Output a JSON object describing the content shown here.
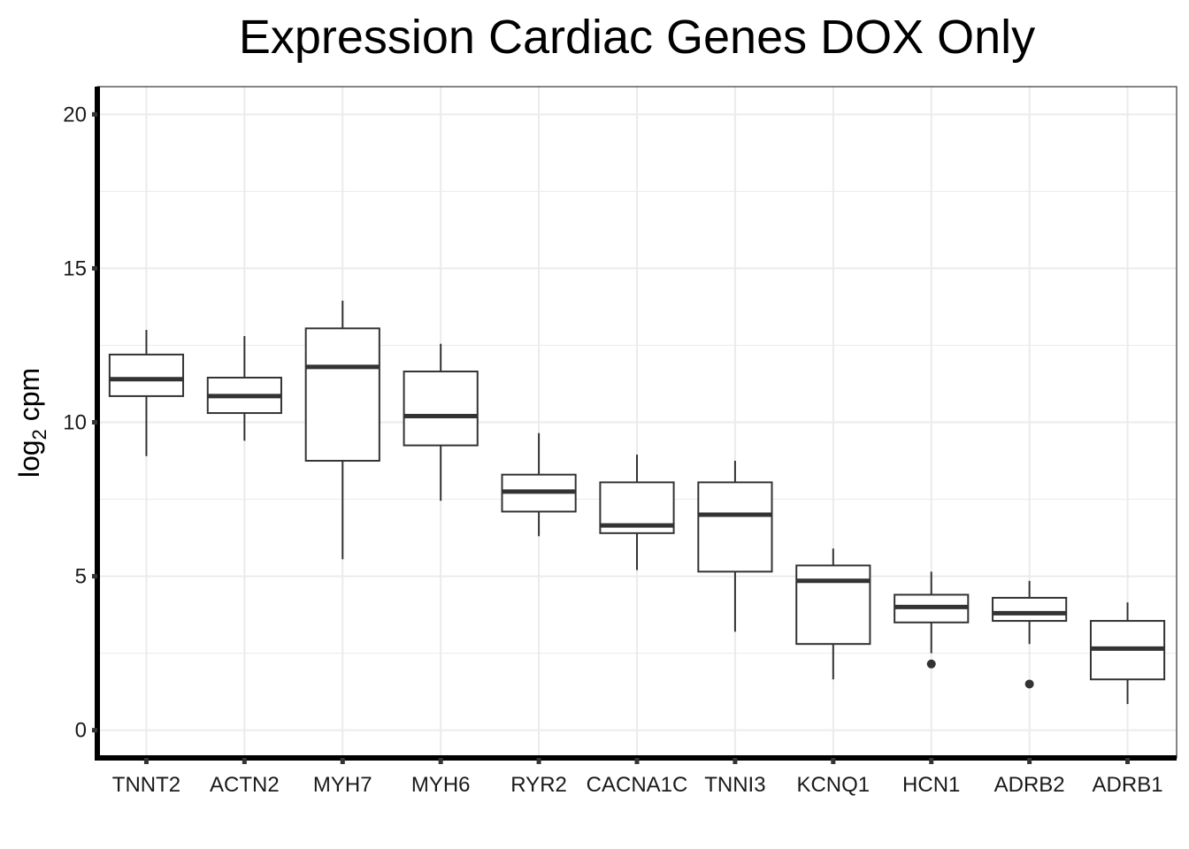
{
  "chart_data": {
    "type": "boxplot",
    "title": "Expression Cardiac Genes DOX Only",
    "xlabel": "",
    "ylabel": {
      "main": "log",
      "subscript": "2",
      "rest": " cpm"
    },
    "ylim": [
      -0.9,
      20.9
    ],
    "yticks": [
      0,
      5,
      10,
      15,
      20
    ],
    "grid": true,
    "categories": [
      "TNNT2",
      "ACTN2",
      "MYH7",
      "MYH6",
      "RYR2",
      "CACNA1C",
      "TNNI3",
      "KCNQ1",
      "HCN1",
      "ADRB2",
      "ADRB1"
    ],
    "boxes": [
      {
        "name": "TNNT2",
        "whisker_low": 8.9,
        "q1": 10.85,
        "median": 11.4,
        "q3": 12.2,
        "whisker_high": 13.0,
        "outliers": []
      },
      {
        "name": "ACTN2",
        "whisker_low": 9.4,
        "q1": 10.3,
        "median": 10.85,
        "q3": 11.45,
        "whisker_high": 12.8,
        "outliers": []
      },
      {
        "name": "MYH7",
        "whisker_low": 5.55,
        "q1": 8.75,
        "median": 11.8,
        "q3": 13.05,
        "whisker_high": 13.95,
        "outliers": []
      },
      {
        "name": "MYH6",
        "whisker_low": 7.45,
        "q1": 9.25,
        "median": 10.2,
        "q3": 11.65,
        "whisker_high": 12.55,
        "outliers": []
      },
      {
        "name": "RYR2",
        "whisker_low": 6.3,
        "q1": 7.1,
        "median": 7.75,
        "q3": 8.3,
        "whisker_high": 9.65,
        "outliers": []
      },
      {
        "name": "CACNA1C",
        "whisker_low": 5.2,
        "q1": 6.4,
        "median": 6.65,
        "q3": 8.05,
        "whisker_high": 8.95,
        "outliers": []
      },
      {
        "name": "TNNI3",
        "whisker_low": 3.2,
        "q1": 5.15,
        "median": 7.0,
        "q3": 8.05,
        "whisker_high": 8.75,
        "outliers": []
      },
      {
        "name": "KCNQ1",
        "whisker_low": 1.65,
        "q1": 2.8,
        "median": 4.85,
        "q3": 5.35,
        "whisker_high": 5.9,
        "outliers": []
      },
      {
        "name": "HCN1",
        "whisker_low": 2.5,
        "q1": 3.5,
        "median": 4.0,
        "q3": 4.4,
        "whisker_high": 5.15,
        "outliers": [
          2.15
        ]
      },
      {
        "name": "ADRB2",
        "whisker_low": 2.8,
        "q1": 3.55,
        "median": 3.8,
        "q3": 4.3,
        "whisker_high": 4.85,
        "outliers": [
          1.5
        ]
      },
      {
        "name": "ADRB1",
        "whisker_low": 0.85,
        "q1": 1.65,
        "median": 2.65,
        "q3": 3.55,
        "whisker_high": 4.15,
        "outliers": []
      }
    ],
    "colors": {
      "box_stroke": "#333333",
      "median": "#333333",
      "grid": "#ebebeb",
      "axis": "#000000",
      "panel_border": "#333333"
    }
  }
}
